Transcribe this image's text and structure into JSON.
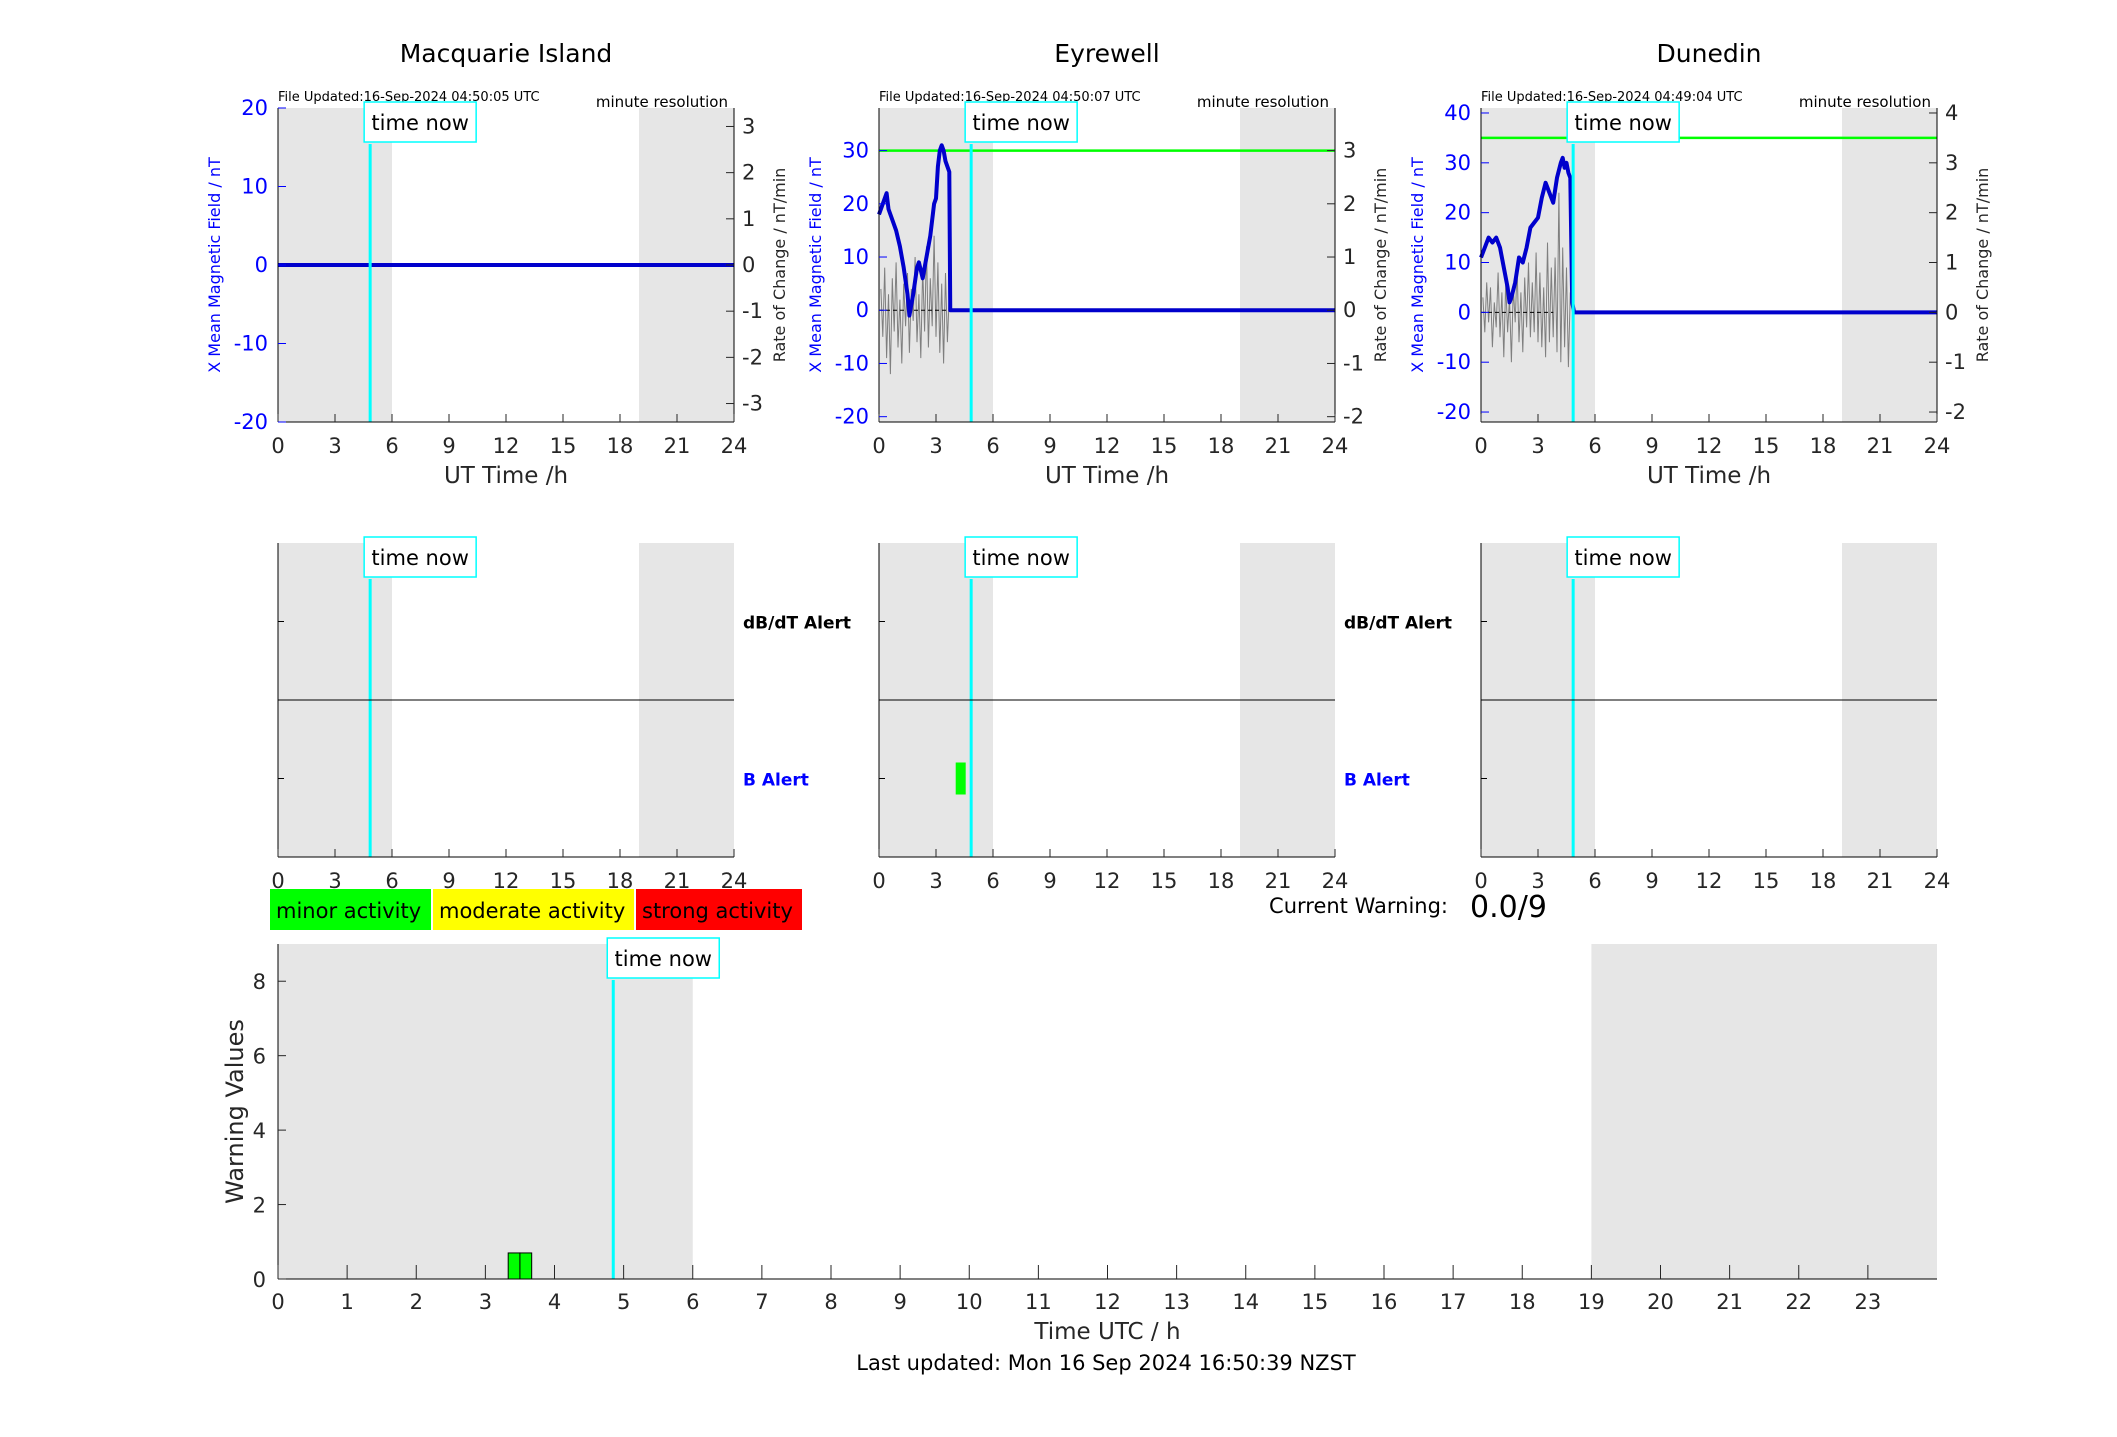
{
  "figure": {
    "last_updated": "Last updated: Mon 16 Sep 2024 16:50:39 NZST",
    "current_warning_label": "Current Warning:",
    "current_warning_value": "0.0/9",
    "time_now_label": "time now",
    "legend": [
      {
        "label": "minor activity",
        "color": "#00ff00"
      },
      {
        "label": "moderate activity",
        "color": "#ffff00"
      },
      {
        "label": "strong activity",
        "color": "#ff0000"
      }
    ],
    "colors": {
      "field": "#0000cc",
      "rate": "#7f7f7f",
      "threshold": "#00ff00",
      "time_now": "#00ffff",
      "night_shade": "#e6e6e6"
    }
  },
  "chart_data": [
    {
      "id": "macquarie-field",
      "type": "line",
      "title": "Macquarie Island",
      "file_updated": "File Updated:16-Sep-2024 04:50:05 UTC",
      "resolution": "minute resolution",
      "xlabel": "UT Time /h",
      "ylabel": "X Mean Magnetic Field / nT",
      "y2label": "Rate of Change / nT/min",
      "xlim": [
        0,
        24
      ],
      "ylim": [
        -20,
        20
      ],
      "y2lim": [
        -3.4,
        3.4
      ],
      "xticks": [
        0,
        3,
        6,
        9,
        12,
        15,
        18,
        21,
        24
      ],
      "yticks": [
        -20,
        -10,
        0,
        10,
        20
      ],
      "y2ticks": [
        -3,
        -2,
        -1,
        0,
        1,
        2,
        3
      ],
      "time_now": 4.85,
      "night_shading": [
        [
          0,
          6
        ],
        [
          19,
          24
        ]
      ],
      "threshold": null,
      "series": [
        {
          "role": "field",
          "x": [
            0,
            24
          ],
          "y": [
            0,
            0
          ]
        }
      ],
      "rate_series": {
        "x": [],
        "y": []
      }
    },
    {
      "id": "eyrewell-field",
      "type": "line",
      "title": "Eyrewell",
      "file_updated": "File Updated:16-Sep-2024 04:50:07 UTC",
      "resolution": "minute resolution",
      "xlabel": "UT Time /h",
      "ylabel": "X Mean Magnetic Field / nT",
      "y2label": "Rate of Change / nT/min",
      "xlim": [
        0,
        24
      ],
      "ylim": [
        -21,
        38
      ],
      "y2lim": [
        -2.1,
        3.8
      ],
      "xticks": [
        0,
        3,
        6,
        9,
        12,
        15,
        18,
        21,
        24
      ],
      "yticks": [
        -20,
        -10,
        0,
        10,
        20,
        30
      ],
      "y2ticks": [
        -2,
        -1,
        0,
        1,
        2,
        3
      ],
      "time_now": 4.85,
      "night_shading": [
        [
          0,
          6
        ],
        [
          19,
          24
        ]
      ],
      "threshold": 30,
      "series": [
        {
          "role": "field",
          "x": [
            0,
            0.2,
            0.4,
            0.5,
            0.7,
            0.9,
            1.1,
            1.3,
            1.5,
            1.6,
            1.8,
            2.0,
            2.1,
            2.3,
            2.5,
            2.7,
            2.9,
            3.0,
            3.1,
            3.2,
            3.3,
            3.4,
            3.5,
            3.6,
            3.7,
            3.75,
            3.8,
            24
          ],
          "y": [
            18,
            20,
            22,
            19,
            17,
            15,
            12,
            8,
            3,
            -1,
            3,
            8,
            9,
            6,
            10,
            14,
            20,
            21,
            27,
            30,
            31,
            30,
            28,
            27,
            26,
            0,
            0,
            0
          ]
        }
      ],
      "rate_series": {
        "x": [
          0.1,
          0.2,
          0.3,
          0.4,
          0.5,
          0.6,
          0.7,
          0.8,
          0.9,
          1.0,
          1.1,
          1.2,
          1.3,
          1.4,
          1.5,
          1.6,
          1.7,
          1.8,
          1.9,
          2.0,
          2.1,
          2.2,
          2.3,
          2.4,
          2.5,
          2.6,
          2.7,
          2.8,
          2.9,
          3.0,
          3.1,
          3.2,
          3.3,
          3.4,
          3.5,
          3.6,
          3.7
        ],
        "y": [
          0.4,
          -0.5,
          0.8,
          -0.9,
          0.3,
          -1.2,
          0.6,
          -0.4,
          0.9,
          -0.7,
          0.2,
          -1.0,
          0.5,
          -0.3,
          0.7,
          -0.8,
          0.4,
          -0.2,
          1.0,
          -0.6,
          0.3,
          -0.9,
          0.8,
          -0.4,
          1.2,
          -0.7,
          0.6,
          -0.3,
          1.4,
          -0.5,
          0.9,
          -0.8,
          0.5,
          -1.0,
          0.7,
          -0.6,
          0.3
        ]
      }
    },
    {
      "id": "dunedin-field",
      "type": "line",
      "title": "Dunedin",
      "file_updated": "File Updated:16-Sep-2024 04:49:04 UTC",
      "resolution": "minute resolution",
      "xlabel": "UT Time /h",
      "ylabel": "X Mean Magnetic Field / nT",
      "y2label": "Rate of Change / nT/min",
      "xlim": [
        0,
        24
      ],
      "ylim": [
        -22,
        41
      ],
      "y2lim": [
        -2.2,
        4.1
      ],
      "xticks": [
        0,
        3,
        6,
        9,
        12,
        15,
        18,
        21,
        24
      ],
      "yticks": [
        -20,
        -10,
        0,
        10,
        20,
        30,
        40
      ],
      "y2ticks": [
        -2,
        -1,
        0,
        1,
        2,
        3,
        4
      ],
      "time_now": 4.85,
      "night_shading": [
        [
          0,
          6
        ],
        [
          19,
          24
        ]
      ],
      "threshold": 35,
      "series": [
        {
          "role": "field",
          "x": [
            0,
            0.2,
            0.4,
            0.6,
            0.8,
            1.0,
            1.2,
            1.4,
            1.5,
            1.6,
            1.8,
            2.0,
            2.2,
            2.4,
            2.6,
            2.8,
            3.0,
            3.2,
            3.4,
            3.6,
            3.8,
            4.0,
            4.2,
            4.3,
            4.4,
            4.5,
            4.6,
            4.7,
            4.8,
            4.9,
            24
          ],
          "y": [
            11,
            13,
            15,
            14,
            15,
            13,
            9,
            5,
            2,
            3,
            6,
            11,
            10,
            13,
            17,
            18,
            19,
            23,
            26,
            24,
            22,
            27,
            30,
            31,
            29,
            30,
            28,
            27,
            2,
            0,
            0
          ]
        }
      ],
      "rate_series": {
        "x": [
          0.1,
          0.2,
          0.3,
          0.4,
          0.5,
          0.6,
          0.7,
          0.8,
          0.9,
          1.0,
          1.1,
          1.2,
          1.3,
          1.4,
          1.5,
          1.6,
          1.7,
          1.8,
          1.9,
          2.0,
          2.1,
          2.2,
          2.3,
          2.4,
          2.5,
          2.6,
          2.7,
          2.8,
          2.9,
          3.0,
          3.1,
          3.2,
          3.3,
          3.4,
          3.5,
          3.6,
          3.7,
          3.8,
          3.9,
          4.0,
          4.1,
          4.2,
          4.3,
          4.4,
          4.5,
          4.6,
          4.7
        ],
        "y": [
          0.3,
          -0.4,
          0.6,
          -0.2,
          0.5,
          -0.7,
          0.2,
          -0.3,
          0.8,
          -0.5,
          0.4,
          -0.9,
          0.6,
          -0.4,
          0.3,
          -1.0,
          0.5,
          -0.2,
          0.9,
          -0.6,
          0.4,
          -0.8,
          0.7,
          -0.3,
          1.0,
          -0.5,
          0.6,
          -0.4,
          1.2,
          -0.6,
          0.8,
          -0.7,
          0.5,
          -0.9,
          1.4,
          -0.6,
          0.9,
          -0.5,
          1.1,
          -0.8,
          2.4,
          -1.0,
          1.3,
          -0.7,
          0.9,
          -1.1,
          0.4
        ]
      }
    },
    {
      "id": "macquarie-alert",
      "type": "bar",
      "xlim": [
        0,
        24
      ],
      "xticks": [
        0,
        3,
        6,
        9,
        12,
        15,
        18,
        21,
        24
      ],
      "time_now": 4.85,
      "night_shading": [
        [
          0,
          6
        ],
        [
          19,
          24
        ]
      ],
      "row_labels": [
        "dB/dT Alert",
        "B Alert"
      ],
      "alerts": []
    },
    {
      "id": "eyrewell-alert",
      "type": "bar",
      "xlim": [
        0,
        24
      ],
      "xticks": [
        0,
        3,
        6,
        9,
        12,
        15,
        18,
        21,
        24
      ],
      "time_now": 4.85,
      "night_shading": [
        [
          0,
          6
        ],
        [
          19,
          24
        ]
      ],
      "row_labels": [
        "dB/dT Alert",
        "B Alert"
      ],
      "alerts": [
        {
          "row": "B Alert",
          "start": 3.3,
          "end": 3.8,
          "level": "minor"
        }
      ]
    },
    {
      "id": "dunedin-alert",
      "type": "bar",
      "xlim": [
        0,
        24
      ],
      "xticks": [
        0,
        3,
        6,
        9,
        12,
        15,
        18,
        21,
        24
      ],
      "time_now": 4.85,
      "night_shading": [
        [
          0,
          6
        ],
        [
          19,
          24
        ]
      ],
      "alerts": []
    },
    {
      "id": "warning-values",
      "type": "bar",
      "xlabel": "Time UTC / h",
      "ylabel": "Warning Values",
      "xlim": [
        0,
        24
      ],
      "ylim": [
        0,
        9
      ],
      "xticks": [
        0,
        1,
        2,
        3,
        4,
        5,
        6,
        7,
        8,
        9,
        10,
        11,
        12,
        13,
        14,
        15,
        16,
        17,
        18,
        19,
        20,
        21,
        22,
        23
      ],
      "yticks": [
        0,
        2,
        4,
        6,
        8
      ],
      "time_now": 4.85,
      "night_shading": [
        [
          0,
          6
        ],
        [
          19,
          24
        ]
      ],
      "bars": [
        {
          "x0": 3.33,
          "x1": 3.5,
          "value": 0.7,
          "level": "minor"
        },
        {
          "x0": 3.5,
          "x1": 3.67,
          "value": 0.7,
          "level": "minor"
        }
      ]
    }
  ]
}
